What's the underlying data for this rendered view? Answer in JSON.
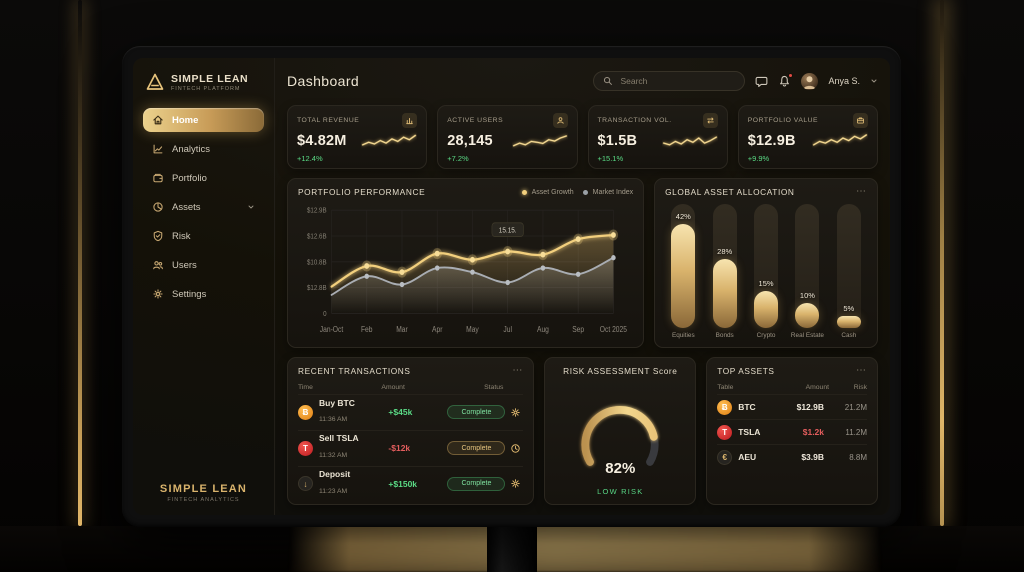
{
  "ui": {
    "ellipsis": "⋯"
  },
  "sidebar": {
    "logo_title": "SIMPLE LEAN",
    "logo_subtitle": "FINTECH PLATFORM",
    "items": [
      {
        "label": "Home",
        "active": true
      },
      {
        "label": "Analytics"
      },
      {
        "label": "Portfolio"
      },
      {
        "label": "Assets",
        "expandable": true
      },
      {
        "label": "Risk"
      },
      {
        "label": "Users"
      },
      {
        "label": "Settings"
      }
    ],
    "footer_title": "SIMPLE LEAN",
    "footer_subtitle": "FINTECH ANALYTICS"
  },
  "header": {
    "title": "Dashboard",
    "search_placeholder": "Search",
    "user_name": "Anya S."
  },
  "kpis": [
    {
      "label": "TOTAL REVENUE",
      "value": "$4.82M",
      "delta": "+12.4%",
      "icon": "bar-chart-icon"
    },
    {
      "label": "ACTIVE USERS",
      "value": "28,145",
      "delta": "+7.2%",
      "icon": "users-icon"
    },
    {
      "label": "TRANSACTION VOL.",
      "value": "$1.5B",
      "delta": "+15.1%",
      "icon": "transfer-icon"
    },
    {
      "label": "PORTFOLIO VALUE",
      "value": "$12.9B",
      "delta": "+9.9%",
      "icon": "briefcase-icon"
    }
  ],
  "performance": {
    "title": "PORTFOLIO PERFORMANCE",
    "legend": [
      {
        "label": "Asset Growth",
        "color": "#f2cf7d"
      },
      {
        "label": "Market Index",
        "color": "#9aa0a6"
      }
    ]
  },
  "allocation": {
    "title": "GLOBAL ASSET ALLOCATION"
  },
  "transactions": {
    "title": "RECENT TRANSACTIONS",
    "columns": [
      "Time",
      "Amount",
      "Status"
    ],
    "rows": [
      {
        "asset_icon": "Ƀ",
        "name": "Buy BTC",
        "time": "11:36 AM",
        "amount": "+$45k",
        "amount_tone": "positive",
        "status": "Complete",
        "status_tone": "green",
        "trailing_icon": "gear-icon"
      },
      {
        "asset_icon": "T",
        "name": "Sell TSLA",
        "time": "11:32 AM",
        "amount": "-$12k",
        "amount_tone": "negative",
        "status": "Complete",
        "status_tone": "gold",
        "trailing_icon": "clock-icon"
      },
      {
        "asset_icon": "↓",
        "name": "Deposit",
        "time": "11:23 AM",
        "amount": "+$150k",
        "amount_tone": "positive",
        "status": "Complete",
        "status_tone": "green",
        "trailing_icon": "gear-icon"
      }
    ]
  },
  "risk": {
    "title": "RISK ASSESSMENT Score",
    "value_label": "82%",
    "status": "LOW RISK"
  },
  "top_assets": {
    "title": "TOP ASSETS",
    "columns": [
      "Table",
      "Amount",
      "Risk"
    ],
    "rows": [
      {
        "icon": "Ƀ",
        "symbol": "BTC",
        "amount": "$12.9B",
        "amount_tone": "neutral",
        "risk": "21.2M"
      },
      {
        "icon": "T",
        "symbol": "TSLA",
        "amount": "$1.2k",
        "amount_tone": "negative",
        "risk": "11.2M"
      },
      {
        "icon": "€",
        "symbol": "AEU",
        "amount": "$3.9B",
        "amount_tone": "neutral",
        "risk": "8.8M"
      }
    ]
  },
  "chart_data": [
    {
      "type": "line",
      "title": "PORTFOLIO PERFORMANCE",
      "x": [
        "Jan-Oct",
        "Feb",
        "Mar",
        "Apr",
        "May",
        "Jul",
        "Aug",
        "Sep",
        "Oct 2025"
      ],
      "y_tick_labels": [
        "$12.9B",
        "$12.6B",
        "$10.8B",
        "$12.8B",
        "0"
      ],
      "ylim": [
        0,
        100
      ],
      "grid": true,
      "legend_position": "top-right",
      "series": [
        {
          "name": "Asset Growth",
          "color": "#f2cf7d",
          "values": [
            26,
            46,
            40,
            58,
            52,
            60,
            57,
            72,
            76
          ]
        },
        {
          "name": "Market Index",
          "color": "#a9adb3",
          "values": [
            18,
            36,
            28,
            44,
            40,
            30,
            44,
            38,
            54
          ]
        }
      ],
      "annotation": {
        "label": "15.15.",
        "series": "Asset Growth",
        "x_index": 5
      }
    },
    {
      "type": "bar",
      "title": "GLOBAL ASSET ALLOCATION",
      "categories": [
        "Equities",
        "Bonds",
        "Crypto",
        "Real Estate",
        "Cash"
      ],
      "values": [
        42,
        28,
        15,
        10,
        5
      ],
      "unit": "%"
    },
    {
      "type": "gauge",
      "title": "RISK ASSESSMENT Score",
      "value": 82,
      "max": 100,
      "status": "LOW RISK"
    },
    {
      "type": "sparklines",
      "series": [
        {
          "name": "TOTAL REVENUE",
          "values": [
            30,
            45,
            35,
            55,
            40,
            65,
            50,
            75,
            60,
            85
          ]
        },
        {
          "name": "ACTIVE USERS",
          "values": [
            25,
            40,
            30,
            50,
            45,
            38,
            60,
            52,
            70,
            82
          ]
        },
        {
          "name": "TRANSACTION VOL.",
          "values": [
            40,
            30,
            50,
            35,
            60,
            45,
            70,
            40,
            55,
            75
          ]
        },
        {
          "name": "PORTFOLIO VALUE",
          "values": [
            30,
            50,
            40,
            60,
            45,
            70,
            55,
            80,
            65,
            88
          ]
        }
      ]
    }
  ]
}
